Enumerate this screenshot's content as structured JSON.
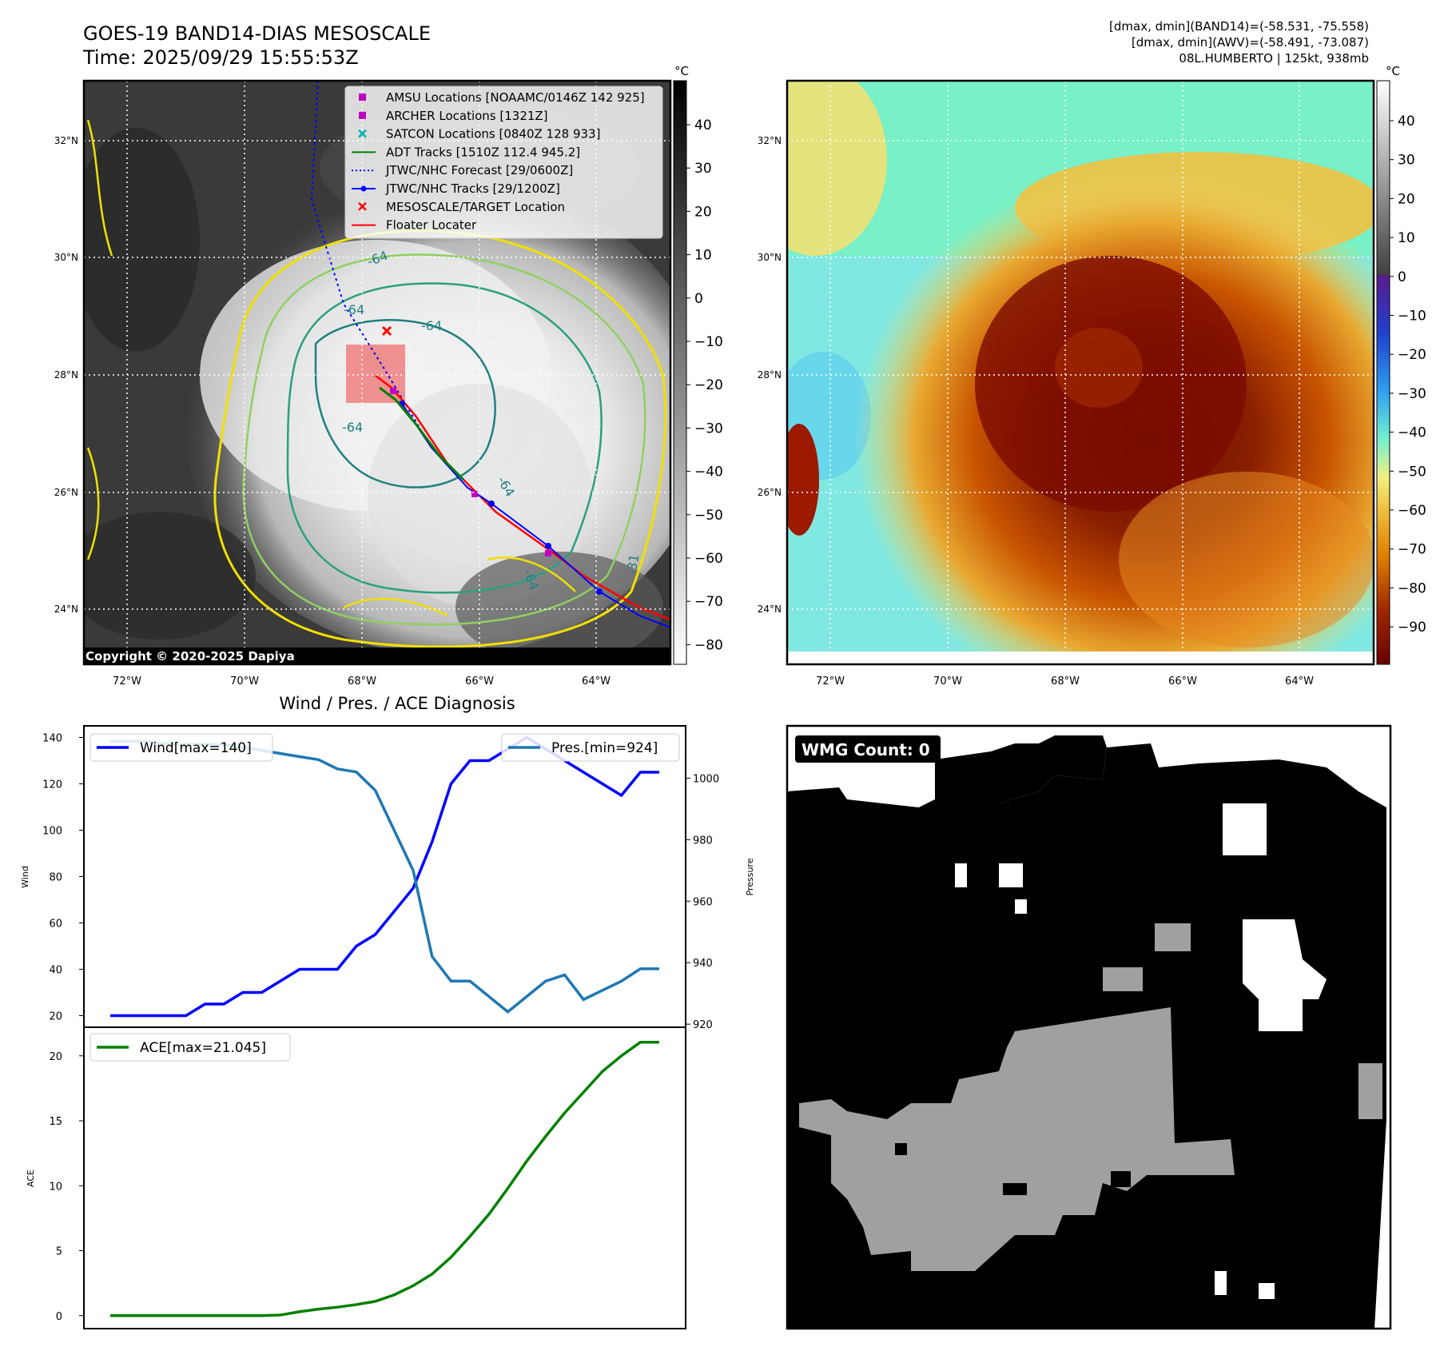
{
  "header": {
    "title_line1": "GOES-19 BAND14-DIAS MESOSCALE",
    "title_line2": "Time: 2025/09/29 15:55:53Z",
    "stats_line1": "[dmax, dmin](BAND14)=(-58.531, -75.558)",
    "stats_line2": "[dmax, dmin](AWV)=(-58.491, -73.087)",
    "stats_line3": "08L.HUMBERTO | 125kt, 938mb"
  },
  "map_axes": {
    "lon_labels": [
      "72°W",
      "70°W",
      "68°W",
      "66°W",
      "64°W"
    ],
    "lat_labels": [
      "32°N",
      "30°N",
      "28°N",
      "26°N",
      "24°N"
    ],
    "lon_range": [
      -72.7,
      -62.7
    ],
    "lat_range": [
      23.3,
      33.0
    ]
  },
  "ir_panel": {
    "legend": [
      {
        "label": "AMSU Locations [NOAAMC/0146Z 142 925]",
        "marker": "square",
        "color": "#c000c0"
      },
      {
        "label": "ARCHER Locations [1321Z]",
        "marker": "square",
        "color": "#c000c0"
      },
      {
        "label": "SATCON Locations [0840Z 128 933]",
        "marker": "x",
        "color": "#00b0b0"
      },
      {
        "label": "ADT Tracks [1510Z 112.4 945.2]",
        "marker": "line",
        "color": "#008000"
      },
      {
        "label": "JTWC/NHC Forecast [29/0600Z]",
        "marker": "dotted",
        "color": "#0000ff"
      },
      {
        "label": "JTWC/NHC Tracks [29/1200Z]",
        "marker": "line-dot",
        "color": "#0000ff"
      },
      {
        "label": "MESOSCALE/TARGET Location",
        "marker": "x",
        "color": "#ff0000"
      },
      {
        "label": "Floater Locater",
        "marker": "line",
        "color": "#ff0000"
      }
    ],
    "copyright": "Copyright © 2020-2025 Dapiya",
    "contour_labels": [
      "-64",
      "-64",
      "-64",
      "-64",
      "-64",
      "-64",
      "-31"
    ],
    "colorbar_unit": "°C",
    "colorbar_ticks": [
      "40",
      "30",
      "20",
      "10",
      "0",
      "−10",
      "−20",
      "−30",
      "−40",
      "−50",
      "−60",
      "−70",
      "−80"
    ]
  },
  "awv_panel": {
    "colorbar_unit": "°C",
    "colorbar_ticks": [
      "40",
      "30",
      "20",
      "10",
      "0",
      "−10",
      "−20",
      "−30",
      "−40",
      "−50",
      "−60",
      "−70",
      "−80",
      "−90"
    ]
  },
  "wmg_panel": {
    "label": "WMG Count: 0"
  },
  "chart_data": [
    {
      "type": "line",
      "title": "Wind / Pres. / ACE Diagnosis",
      "ylabel": "Wind",
      "y2label": "Pressure",
      "ylim": [
        15,
        145
      ],
      "y2lim": [
        919,
        1017
      ],
      "y_ticks": [
        20,
        40,
        60,
        80,
        100,
        120,
        140
      ],
      "y2_ticks": [
        920,
        940,
        960,
        980,
        1000
      ],
      "x": [
        0,
        1,
        2,
        3,
        4,
        5,
        6,
        7,
        8,
        9,
        10,
        11,
        12,
        13,
        14,
        15,
        16,
        17,
        18,
        19,
        20,
        21,
        22,
        23,
        24,
        25,
        26,
        27,
        28,
        29
      ],
      "series": [
        {
          "name": "Wind[max=140]",
          "axis": "left",
          "color": "#0000ff",
          "values": [
            20,
            20,
            20,
            20,
            20,
            25,
            25,
            30,
            30,
            35,
            40,
            40,
            40,
            50,
            55,
            65,
            75,
            95,
            120,
            130,
            130,
            135,
            140,
            135,
            130,
            125,
            120,
            115,
            125,
            125
          ]
        },
        {
          "name": "Pres.[min=924]",
          "axis": "right",
          "color": "#1f77b4",
          "values": [
            1012,
            1012,
            1012,
            1011,
            1011,
            1011,
            1011,
            1010,
            1009,
            1008,
            1007,
            1006,
            1003,
            1002,
            996,
            983,
            970,
            942,
            934,
            934,
            929,
            924,
            929,
            934,
            936,
            928,
            931,
            934,
            938,
            938
          ]
        }
      ]
    },
    {
      "type": "line",
      "ylabel": "ACE",
      "ylim": [
        -1,
        22.2
      ],
      "y_ticks": [
        0,
        5,
        10,
        15,
        20
      ],
      "x": [
        0,
        1,
        2,
        3,
        4,
        5,
        6,
        7,
        8,
        9,
        10,
        11,
        12,
        13,
        14,
        15,
        16,
        17,
        18,
        19,
        20,
        21,
        22,
        23,
        24,
        25,
        26,
        27,
        28,
        29
      ],
      "series": [
        {
          "name": "ACE[max=21.045]",
          "color": "#008000",
          "values": [
            0,
            0,
            0,
            0,
            0,
            0,
            0,
            0,
            0,
            0.05,
            0.3,
            0.5,
            0.65,
            0.85,
            1.1,
            1.6,
            2.3,
            3.2,
            4.5,
            6.1,
            7.8,
            9.8,
            11.9,
            13.8,
            15.6,
            17.2,
            18.8,
            20.0,
            21.045,
            21.045
          ]
        }
      ]
    }
  ]
}
